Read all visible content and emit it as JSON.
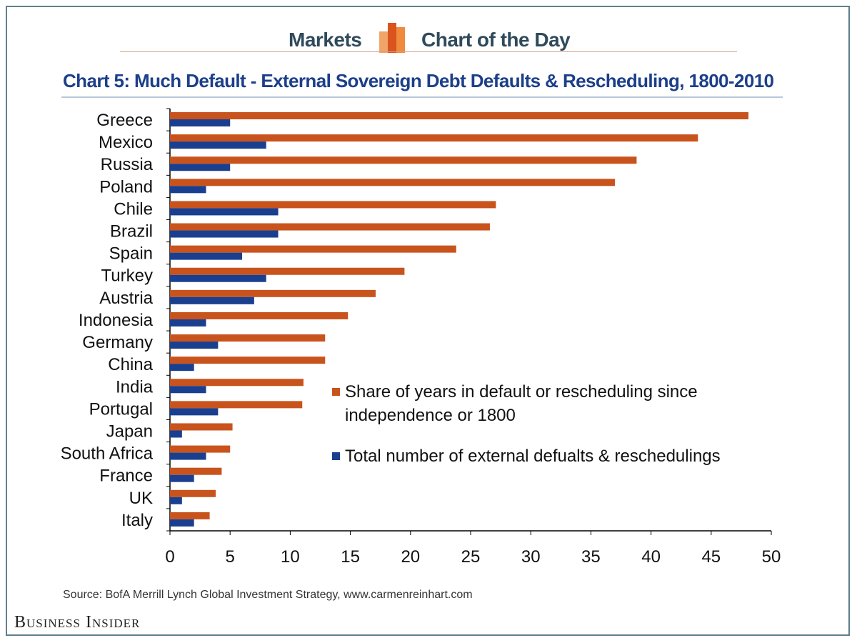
{
  "header": {
    "left_text": "Markets",
    "right_text": "Chart of the Day",
    "logo_icon": "bar-chart-logo-icon"
  },
  "source_text": "Source: BofA Merrill Lynch Global Investment Strategy, www.carmenreinhart.com",
  "brand_text": "Business Insider",
  "colors": {
    "share_series": "#c9531c",
    "count_series": "#1a3f8f",
    "title": "#1c3f8a",
    "header_text": "#2f4a5a"
  },
  "chart_data": {
    "type": "bar",
    "orientation": "horizontal",
    "title": "Chart 5: Much Default - External Sovereign Debt Defaults & Rescheduling, 1800-2010",
    "categories": [
      "Greece",
      "Mexico",
      "Russia",
      "Poland",
      "Chile",
      "Brazil",
      "Spain",
      "Turkey",
      "Austria",
      "Indonesia",
      "Germany",
      "China",
      "India",
      "Portugal",
      "Japan",
      "South Africa",
      "France",
      "UK",
      "Italy"
    ],
    "series": [
      {
        "name": "Share of years in default or rescheduling since independence or 1800",
        "values": [
          48.1,
          43.9,
          38.8,
          37.0,
          27.1,
          26.6,
          23.8,
          19.5,
          17.1,
          14.8,
          12.9,
          12.9,
          11.1,
          11.0,
          5.2,
          5.0,
          4.3,
          3.8,
          3.3
        ]
      },
      {
        "name": "Total number of external defualts & reschedulings",
        "values": [
          5,
          8,
          5,
          3,
          9,
          9,
          6,
          8,
          7,
          3,
          4,
          2,
          3,
          4,
          1,
          3,
          2,
          1,
          2
        ]
      }
    ],
    "xlim": [
      0,
      50
    ],
    "xticks": [
      0,
      5,
      10,
      15,
      20,
      25,
      30,
      35,
      40,
      45,
      50
    ],
    "legend_position": "right-center",
    "grid": false
  }
}
